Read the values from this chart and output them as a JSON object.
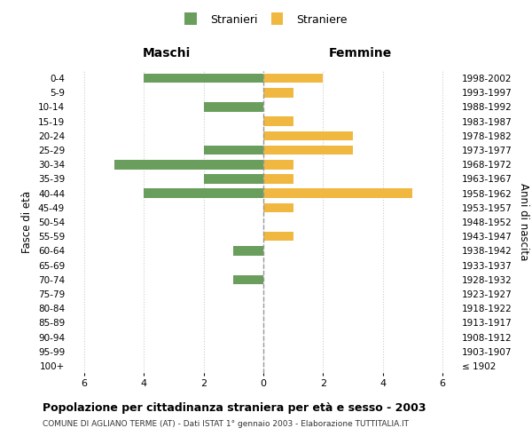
{
  "age_groups": [
    "100+",
    "95-99",
    "90-94",
    "85-89",
    "80-84",
    "75-79",
    "70-74",
    "65-69",
    "60-64",
    "55-59",
    "50-54",
    "45-49",
    "40-44",
    "35-39",
    "30-34",
    "25-29",
    "20-24",
    "15-19",
    "10-14",
    "5-9",
    "0-4"
  ],
  "birth_years": [
    "≤ 1902",
    "1903-1907",
    "1908-1912",
    "1913-1917",
    "1918-1922",
    "1923-1927",
    "1928-1932",
    "1933-1937",
    "1938-1942",
    "1943-1947",
    "1948-1952",
    "1953-1957",
    "1958-1962",
    "1963-1967",
    "1968-1972",
    "1973-1977",
    "1978-1982",
    "1983-1987",
    "1988-1992",
    "1993-1997",
    "1998-2002"
  ],
  "maschi": [
    0,
    0,
    0,
    0,
    0,
    0,
    1,
    0,
    1,
    0,
    0,
    0,
    4,
    2,
    5,
    2,
    0,
    0,
    2,
    0,
    4
  ],
  "femmine": [
    0,
    0,
    0,
    0,
    0,
    0,
    0,
    0,
    0,
    1,
    0,
    1,
    5,
    1,
    1,
    3,
    3,
    1,
    0,
    1,
    2
  ],
  "maschi_color": "#6a9e5c",
  "femmine_color": "#f0b840",
  "title": "Popolazione per cittadinanza straniera per età e sesso - 2003",
  "subtitle": "COMUNE DI AGLIANO TERME (AT) - Dati ISTAT 1° gennaio 2003 - Elaborazione TUTTITALIA.IT",
  "xlabel_left": "Maschi",
  "xlabel_right": "Femmine",
  "ylabel_left": "Fasce di età",
  "ylabel_right": "Anni di nascita",
  "legend_maschi": "Stranieri",
  "legend_femmine": "Straniere",
  "xlim": 6.5,
  "background_color": "#ffffff",
  "grid_color": "#cccccc"
}
